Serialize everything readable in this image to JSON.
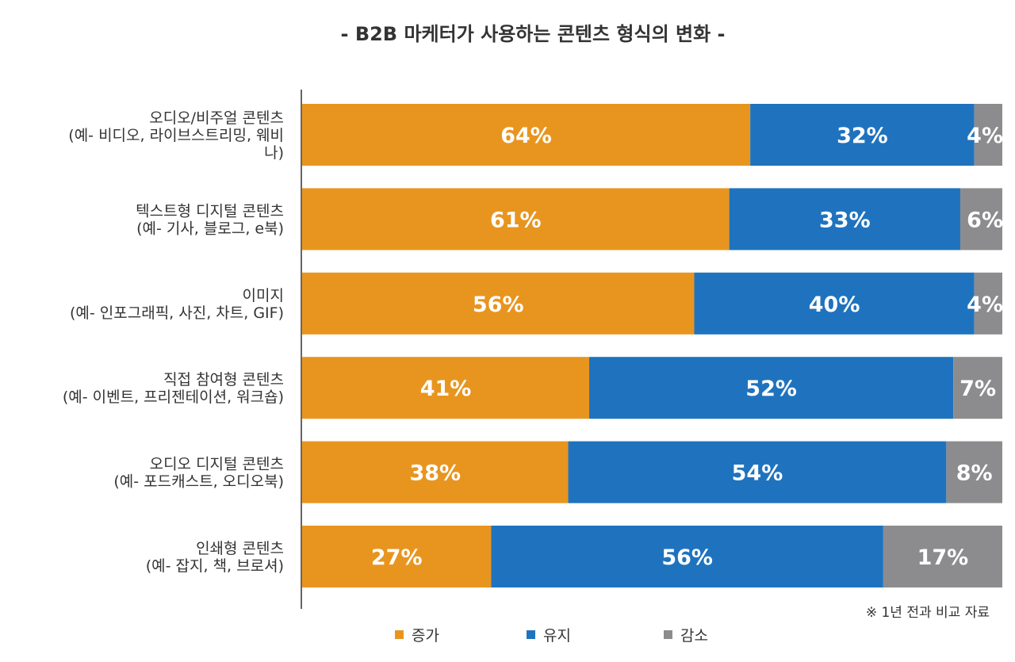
{
  "chart_data": {
    "type": "bar",
    "orientation": "horizontal",
    "stacked": true,
    "percent": true,
    "title": "- B2B 마케터가 사용하는 콘텐츠 형식의 변화 -",
    "note": "※ 1년 전과 비교 자료",
    "categories": [
      [
        "오디오/비주얼 콘텐츠",
        "(예- 비디오, 라이브스트리밍, 웨비",
        "나)"
      ],
      [
        "텍스트형 디지털 콘텐츠",
        "(예- 기사, 블로그, e북)"
      ],
      [
        "이미지",
        "(예- 인포그래픽, 사진, 차트, GIF)"
      ],
      [
        "직접 참여형 콘텐츠",
        "(예- 이벤트, 프리젠테이션, 워크숍)"
      ],
      [
        "오디오 디지털 콘텐츠",
        "(예- 포드캐스트, 오디오북)"
      ],
      [
        "인쇄형 콘텐츠",
        "(예- 잡지, 책, 브로셔)"
      ]
    ],
    "series": [
      {
        "name": "증가",
        "color": "#E8951F",
        "values": [
          64,
          61,
          56,
          41,
          38,
          27
        ]
      },
      {
        "name": "유지",
        "color": "#1F73BE",
        "values": [
          32,
          33,
          40,
          52,
          54,
          56
        ]
      },
      {
        "name": "감소",
        "color": "#8C8C8E",
        "values": [
          4,
          6,
          4,
          7,
          8,
          17
        ]
      }
    ],
    "value_suffix": "%",
    "xlim": [
      0,
      100
    ],
    "grid": false,
    "legend_position": "bottom"
  }
}
